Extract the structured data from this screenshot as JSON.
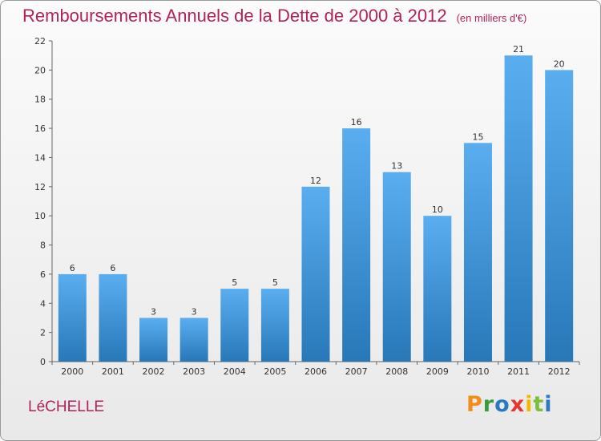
{
  "title": "Remboursements Annuels de la Dette de 2000 à 2012",
  "unit": "(en milliers d'€)",
  "commune": "LéCHELLE",
  "logo": {
    "text": "Proxiti",
    "colors": [
      "#f28c1b",
      "#3a9b3a",
      "#2b79c2",
      "#e8362c",
      "#f5b800",
      "#7bbf3a",
      "#2b79c2"
    ]
  },
  "colors": {
    "title": "#b0225a",
    "bar_light": "#5aaef0",
    "bar_dark": "#2878b8"
  },
  "chart_data": {
    "type": "bar",
    "categories": [
      "2000",
      "2001",
      "2002",
      "2003",
      "2004",
      "2005",
      "2006",
      "2007",
      "2008",
      "2009",
      "2010",
      "2011",
      "2012"
    ],
    "values": [
      6,
      6,
      3,
      3,
      5,
      5,
      12,
      16,
      13,
      10,
      15,
      21,
      20
    ],
    "ylim": [
      0,
      22
    ],
    "yticks": [
      0,
      2,
      4,
      6,
      8,
      10,
      12,
      14,
      16,
      18,
      20,
      22
    ],
    "grid": false,
    "data_labels": true
  }
}
